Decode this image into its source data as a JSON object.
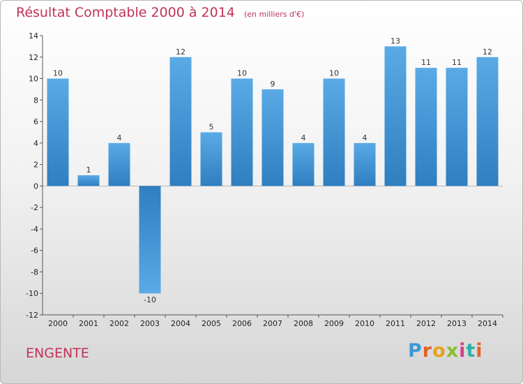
{
  "header": {
    "title": "Résultat Comptable 2000 à 2014",
    "unit": "(en milliers d'€)"
  },
  "footer": {
    "town": "ENGENTE",
    "brand": "Proxiti"
  },
  "colors": {
    "bar_top": "#5aaae6",
    "bar_bottom": "#2f7fc1",
    "title": "#c0335a"
  },
  "chart_data": {
    "type": "bar",
    "title": "Résultat Comptable 2000 à 2014",
    "xlabel": "",
    "ylabel": "",
    "categories": [
      "2000",
      "2001",
      "2002",
      "2003",
      "2004",
      "2005",
      "2006",
      "2007",
      "2008",
      "2009",
      "2010",
      "2011",
      "2012",
      "2013",
      "2014"
    ],
    "values": [
      10,
      1,
      4,
      -10,
      12,
      5,
      10,
      9,
      4,
      10,
      4,
      13,
      11,
      11,
      12
    ],
    "data_labels": [
      "10",
      "1",
      "4",
      "-10",
      "12",
      "5",
      "10",
      "9",
      "4",
      "10",
      "4",
      "13",
      "11",
      "11",
      "12"
    ],
    "ylim": [
      -12,
      14
    ],
    "yticks": [
      -12,
      -10,
      -8,
      -6,
      -4,
      -2,
      0,
      2,
      4,
      6,
      8,
      10,
      12,
      14
    ],
    "grid": false
  }
}
